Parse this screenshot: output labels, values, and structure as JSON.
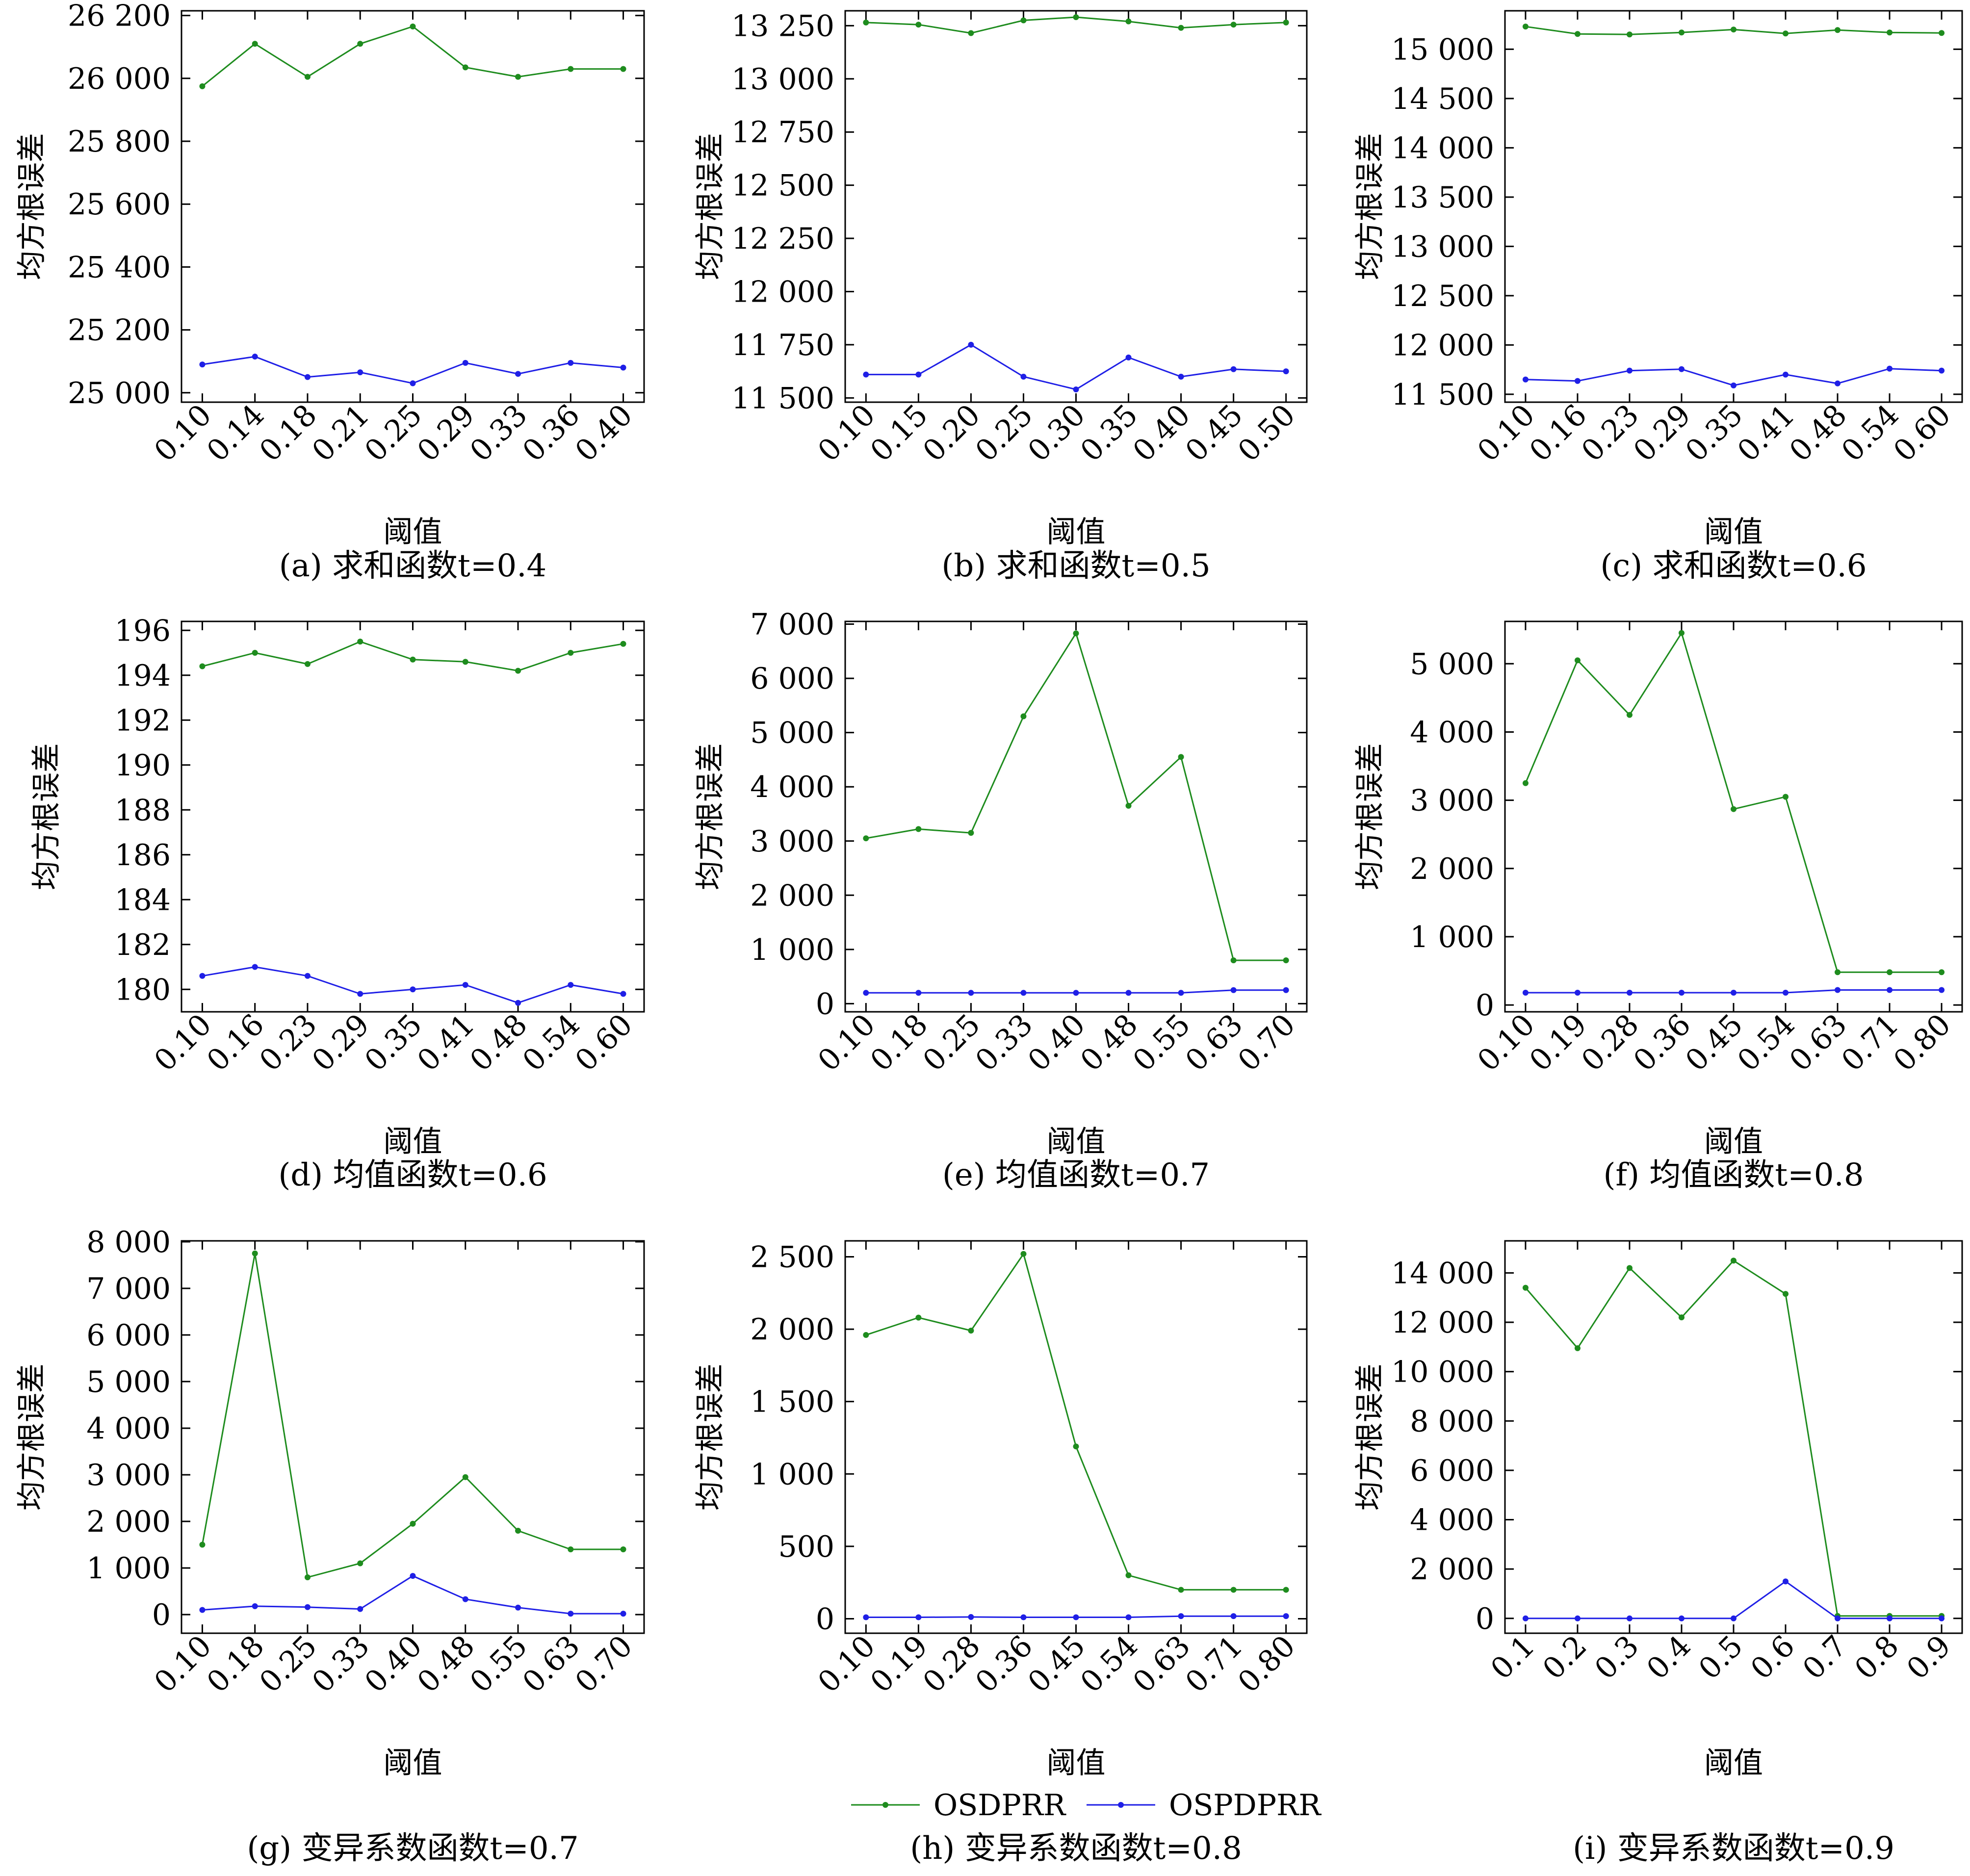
{
  "legend": {
    "entries": [
      {
        "name": "OSDPRR",
        "color": "#1e8c1e"
      },
      {
        "name": "OSPDPRR",
        "color": "#1f1fe6"
      }
    ],
    "placement": "bottom-center"
  },
  "chart_data": [
    {
      "type": "line",
      "caption": "(a) 求和函数t=0.4",
      "xlabel": "阈值",
      "ylabel": "均方根误差",
      "categories": [
        "0.10",
        "0.14",
        "0.18",
        "0.21",
        "0.25",
        "0.29",
        "0.33",
        "0.36",
        "0.40"
      ],
      "yticks": [
        25000,
        25200,
        25400,
        25600,
        25800,
        26000,
        26200
      ],
      "ytick_labels": [
        "25 000",
        "25 200",
        "25 400",
        "25 600",
        "25 800",
        "26 000",
        "26 200"
      ],
      "ylim": [
        24970,
        26215
      ],
      "series": [
        {
          "name": "OSDPRR",
          "values": [
            25975,
            26110,
            26005,
            26110,
            26165,
            26035,
            26005,
            26030,
            26030
          ]
        },
        {
          "name": "OSPDPRR",
          "values": [
            25090,
            25115,
            25050,
            25065,
            25030,
            25095,
            25060,
            25095,
            25080
          ]
        }
      ]
    },
    {
      "type": "line",
      "caption": "(b) 求和函数t=0.5",
      "xlabel": "阈值",
      "ylabel": "均方根误差",
      "categories": [
        "0.10",
        "0.15",
        "0.20",
        "0.25",
        "0.30",
        "0.35",
        "0.40",
        "0.45",
        "0.50"
      ],
      "yticks": [
        11500,
        11750,
        12000,
        12250,
        12500,
        12750,
        13000,
        13250
      ],
      "ytick_labels": [
        "11 500",
        "11 750",
        "12 000",
        "12 250",
        "12 500",
        "12 750",
        "13 000",
        "13 250"
      ],
      "ylim": [
        11480,
        13320
      ],
      "series": [
        {
          "name": "OSDPRR",
          "values": [
            13265,
            13255,
            13215,
            13275,
            13290,
            13270,
            13240,
            13255,
            13265
          ]
        },
        {
          "name": "OSPDPRR",
          "values": [
            11610,
            11610,
            11750,
            11600,
            11540,
            11690,
            11600,
            11635,
            11625
          ]
        }
      ]
    },
    {
      "type": "line",
      "caption": "(c) 求和函数t=0.6",
      "xlabel": "阈值",
      "ylabel": "均方根误差",
      "categories": [
        "0.10",
        "0.16",
        "0.23",
        "0.29",
        "0.35",
        "0.41",
        "0.48",
        "0.54",
        "0.60"
      ],
      "yticks": [
        11500,
        12000,
        12500,
        13000,
        13500,
        14000,
        14500,
        15000
      ],
      "ytick_labels": [
        "11 500",
        "12 000",
        "12 500",
        "13 000",
        "13 500",
        "14 000",
        "14 500",
        "15 000"
      ],
      "ylim": [
        11420,
        15390
      ],
      "series": [
        {
          "name": "OSDPRR",
          "values": [
            15230,
            15155,
            15150,
            15170,
            15200,
            15160,
            15195,
            15170,
            15165
          ]
        },
        {
          "name": "OSPDPRR",
          "values": [
            11650,
            11635,
            11740,
            11755,
            11590,
            11700,
            11610,
            11760,
            11740
          ]
        }
      ]
    },
    {
      "type": "line",
      "caption": "(d) 均值函数t=0.6",
      "xlabel": "阈值",
      "ylabel": "均方根误差",
      "categories": [
        "0.10",
        "0.16",
        "0.23",
        "0.29",
        "0.35",
        "0.41",
        "0.48",
        "0.54",
        "0.60"
      ],
      "yticks": [
        180,
        182,
        184,
        186,
        188,
        190,
        192,
        194,
        196
      ],
      "ytick_labels": [
        "180",
        "182",
        "184",
        "186",
        "188",
        "190",
        "192",
        "194",
        "196"
      ],
      "ylim": [
        179.0,
        196.4
      ],
      "series": [
        {
          "name": "OSDPRR",
          "values": [
            194.4,
            195.0,
            194.5,
            195.5,
            194.7,
            194.6,
            194.2,
            195.0,
            195.4
          ]
        },
        {
          "name": "OSPDPRR",
          "values": [
            180.6,
            181.0,
            180.6,
            179.8,
            180.0,
            180.2,
            179.4,
            180.2,
            179.8
          ]
        }
      ]
    },
    {
      "type": "line",
      "caption": "(e) 均值函数t=0.7",
      "xlabel": "阈值",
      "ylabel": "均方根误差",
      "categories": [
        "0.10",
        "0.18",
        "0.25",
        "0.33",
        "0.40",
        "0.48",
        "0.55",
        "0.63",
        "0.70"
      ],
      "yticks": [
        0,
        1000,
        2000,
        3000,
        4000,
        5000,
        6000,
        7000
      ],
      "ytick_labels": [
        "0",
        "1 000",
        "2 000",
        "3 000",
        "4 000",
        "5 000",
        "6 000",
        "7 000"
      ],
      "ylim": [
        -150,
        7050
      ],
      "series": [
        {
          "name": "OSDPRR",
          "values": [
            3050,
            3220,
            3150,
            5300,
            6830,
            3650,
            4550,
            800,
            800
          ]
        },
        {
          "name": "OSPDPRR",
          "values": [
            200,
            200,
            200,
            200,
            200,
            200,
            200,
            250,
            250
          ]
        }
      ]
    },
    {
      "type": "line",
      "caption": "(f) 均值函数t=0.8",
      "xlabel": "阈值",
      "ylabel": "均方根误差",
      "categories": [
        "0.10",
        "0.19",
        "0.28",
        "0.36",
        "0.45",
        "0.54",
        "0.63",
        "0.71",
        "0.80"
      ],
      "yticks": [
        0,
        1000,
        2000,
        3000,
        4000,
        5000
      ],
      "ytick_labels": [
        "0",
        "1 000",
        "2 000",
        "3 000",
        "4 000",
        "5 000"
      ],
      "ylim": [
        -100,
        5620
      ],
      "series": [
        {
          "name": "OSDPRR",
          "values": [
            3250,
            5050,
            4250,
            5450,
            2870,
            3050,
            480,
            480,
            480
          ]
        },
        {
          "name": "OSPDPRR",
          "values": [
            180,
            180,
            180,
            180,
            180,
            180,
            220,
            220,
            220
          ]
        }
      ]
    },
    {
      "type": "line",
      "caption": "(g) 变异系数函数t=0.7",
      "xlabel": "阈值",
      "ylabel": "均方根误差",
      "categories": [
        "0.10",
        "0.18",
        "0.25",
        "0.33",
        "0.40",
        "0.48",
        "0.55",
        "0.63",
        "0.70"
      ],
      "yticks": [
        0,
        1000,
        2000,
        3000,
        4000,
        5000,
        6000,
        7000,
        8000
      ],
      "ytick_labels": [
        "0",
        "1 000",
        "2 000",
        "3 000",
        "4 000",
        "5 000",
        "6 000",
        "7 000",
        "8 000"
      ],
      "ylim": [
        -400,
        8020
      ],
      "series": [
        {
          "name": "OSDPRR",
          "values": [
            1500,
            7750,
            800,
            1100,
            1950,
            2950,
            1800,
            1400,
            1400
          ]
        },
        {
          "name": "OSPDPRR",
          "values": [
            100,
            180,
            160,
            120,
            830,
            330,
            150,
            20,
            20
          ]
        }
      ]
    },
    {
      "type": "line",
      "caption": "(h) 变异系数函数t=0.8",
      "xlabel": "阈值",
      "ylabel": "均方根误差",
      "categories": [
        "0.10",
        "0.19",
        "0.28",
        "0.36",
        "0.45",
        "0.54",
        "0.63",
        "0.71",
        "0.80"
      ],
      "yticks": [
        0,
        500,
        1000,
        1500,
        2000,
        2500
      ],
      "ytick_labels": [
        "0",
        "500",
        "1 000",
        "1 500",
        "2 000",
        "2 500"
      ],
      "ylim": [
        -100,
        2610
      ],
      "series": [
        {
          "name": "OSDPRR",
          "values": [
            1960,
            2080,
            1990,
            2520,
            1190,
            300,
            200,
            200,
            200
          ]
        },
        {
          "name": "OSPDPRR",
          "values": [
            10,
            10,
            12,
            10,
            10,
            10,
            18,
            18,
            18
          ]
        }
      ]
    },
    {
      "type": "line",
      "caption": "(i) 变异系数函数t=0.9",
      "xlabel": "阈值",
      "ylabel": "均方根误差",
      "categories": [
        "0.1",
        "0.2",
        "0.3",
        "0.4",
        "0.5",
        "0.6",
        "0.7",
        "0.8",
        "0.9"
      ],
      "yticks": [
        0,
        2000,
        4000,
        6000,
        8000,
        10000,
        12000,
        14000
      ],
      "ytick_labels": [
        "0",
        "2 000",
        "4 000",
        "6 000",
        "8 000",
        "10 000",
        "12 000",
        "14 000"
      ],
      "ylim": [
        -600,
        15300
      ],
      "series": [
        {
          "name": "OSDPRR",
          "values": [
            13400,
            10950,
            14200,
            12200,
            14500,
            13150,
            100,
            100,
            100
          ]
        },
        {
          "name": "OSPDPRR",
          "values": [
            0,
            0,
            0,
            0,
            0,
            1500,
            0,
            0,
            0
          ]
        }
      ]
    }
  ]
}
